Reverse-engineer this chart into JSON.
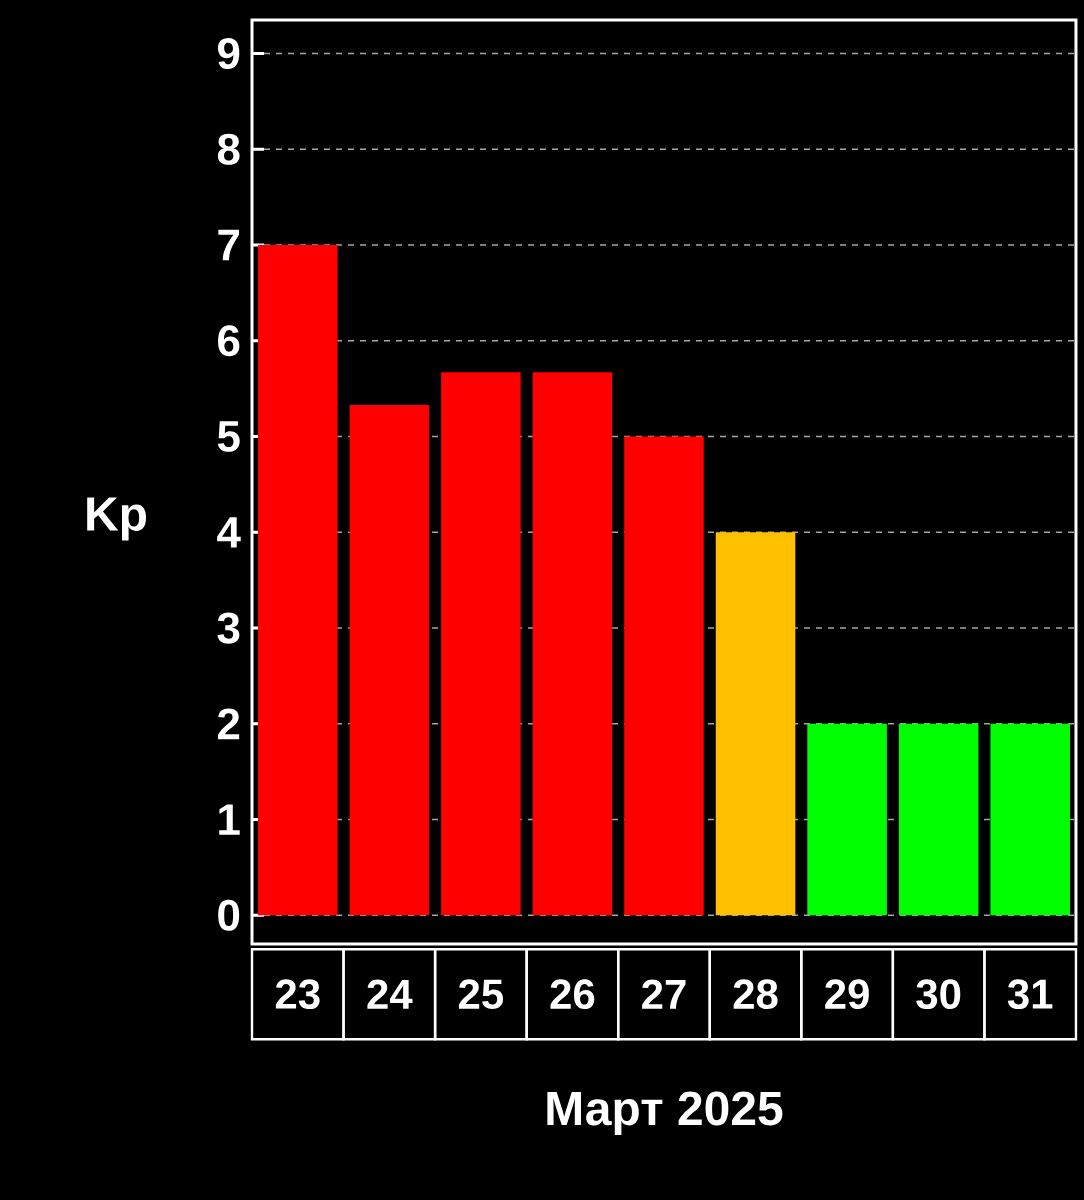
{
  "chart_data": {
    "type": "bar",
    "xlabel": "Март 2025",
    "ylabel": "Kp",
    "categories": [
      "23",
      "24",
      "25",
      "26",
      "27",
      "28",
      "29",
      "30",
      "31"
    ],
    "values": [
      7,
      5.33,
      5.67,
      5.67,
      5,
      4,
      2,
      2,
      2
    ],
    "colors": [
      "#ff0000",
      "#ff0000",
      "#ff0000",
      "#ff0000",
      "#ff0000",
      "#ffc000",
      "#00ff00",
      "#00ff00",
      "#00ff00"
    ],
    "ylim": [
      -0.3,
      9.35
    ],
    "yticks": [
      0,
      1,
      2,
      3,
      4,
      5,
      6,
      7,
      8,
      9
    ],
    "grid": "y"
  }
}
